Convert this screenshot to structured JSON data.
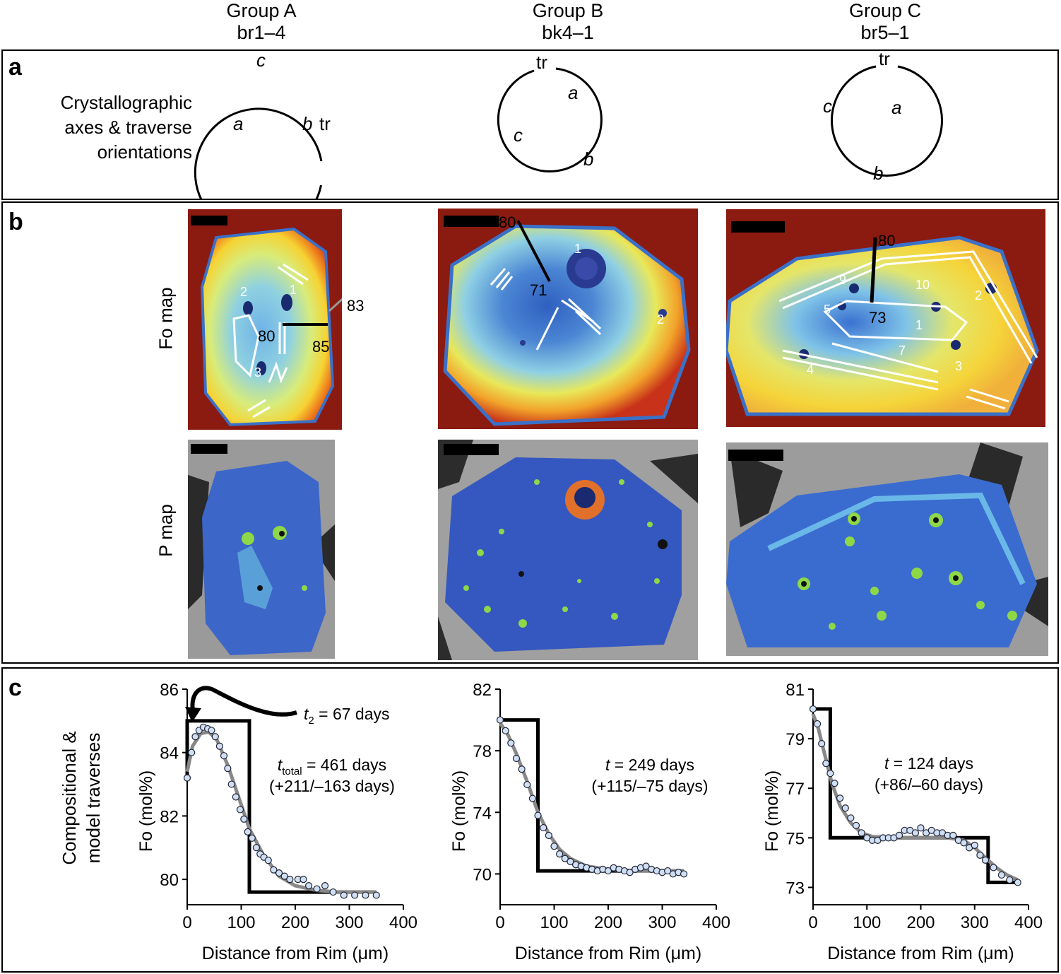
{
  "groups": [
    {
      "title": "Group A",
      "sample": "br1–4"
    },
    {
      "title": "Group B",
      "sample": "bk4–1"
    },
    {
      "title": "Group C",
      "sample": "br5–1"
    }
  ],
  "panel_a": {
    "label": "a",
    "row_label": [
      "Crystallographic",
      "axes & traverse",
      "orientations"
    ],
    "axes": [
      {
        "c": "c",
        "a": "a",
        "b": "b",
        "tr": "tr"
      },
      {
        "c": "c",
        "a": "a",
        "b": "b",
        "tr": "tr"
      },
      {
        "c": "c",
        "a": "a",
        "b": "b",
        "tr": "tr"
      }
    ]
  },
  "panel_b": {
    "label": "b",
    "fo_label": "Fo map",
    "p_label": "P map",
    "groupA": {
      "inclusions": [
        "1",
        "2",
        "3"
      ],
      "traverse": [
        "80",
        "85",
        "83"
      ]
    },
    "groupB": {
      "inclusions": [
        "1",
        "2"
      ],
      "traverse": [
        "80",
        "71"
      ]
    },
    "groupC": {
      "inclusions": [
        "1",
        "2",
        "3",
        "4",
        "5",
        "7",
        "9",
        "10"
      ],
      "traverse": [
        "80",
        "73"
      ]
    },
    "colors": {
      "rim": "#8b1a10",
      "core": "#3a6fd0",
      "matrix": "#9a9a9a",
      "white": "#ffffff"
    }
  },
  "panel_c": {
    "label": "c",
    "row_label": [
      "Compositional &",
      "model traverses"
    ]
  },
  "chart_data": [
    {
      "type": "line",
      "title": "Group A br1–4",
      "xlabel": "Distance from Rim (μm)",
      "ylabel": "Fo (mol%)",
      "xlim": [
        0,
        400
      ],
      "ylim": [
        79.2,
        86
      ],
      "xticks": [
        "0",
        "100",
        "200",
        "300",
        "400"
      ],
      "yticks": [
        "80",
        "82",
        "84",
        "86"
      ],
      "annotation_t2": {
        "t": "t",
        "sub": "2",
        "rest": " = 67 days"
      },
      "annotation_t": {
        "t": "t",
        "sub": "total",
        "rest": " = 461 days",
        "ci": "(+211/–163 days)"
      },
      "series": [
        {
          "name": "initial",
          "x": [
            0,
            0,
            115,
            115,
            350
          ],
          "y": [
            83.2,
            85,
            85,
            79.6,
            79.6
          ]
        },
        {
          "name": "model",
          "x": [
            0,
            10,
            25,
            40,
            55,
            75,
            95,
            115,
            140,
            170,
            200,
            240,
            280,
            350
          ],
          "y": [
            83.4,
            84.2,
            84.6,
            84.65,
            84.4,
            83.6,
            82.6,
            81.6,
            80.8,
            80.1,
            79.8,
            79.65,
            79.6,
            79.6
          ]
        },
        {
          "name": "data",
          "x": [
            0,
            8,
            15,
            22,
            30,
            38,
            45,
            52,
            60,
            68,
            75,
            82,
            90,
            98,
            105,
            112,
            120,
            128,
            135,
            142,
            150,
            160,
            170,
            180,
            190,
            205,
            215,
            225,
            240,
            255,
            270,
            290,
            310,
            330,
            350
          ],
          "y": [
            83.2,
            84.0,
            84.5,
            84.7,
            84.8,
            84.75,
            84.7,
            84.5,
            84.2,
            83.9,
            83.5,
            83.0,
            82.6,
            82.2,
            81.9,
            81.5,
            81.3,
            81.0,
            80.8,
            80.7,
            80.6,
            80.3,
            80.2,
            80.1,
            80.0,
            80.0,
            80.0,
            79.8,
            79.7,
            79.8,
            79.6,
            79.5,
            79.5,
            79.5,
            79.5
          ]
        }
      ]
    },
    {
      "type": "line",
      "title": "Group B bk4–1",
      "xlabel": "Distance from Rim (μm)",
      "ylabel": "Fo (mol%)",
      "xlim": [
        0,
        400
      ],
      "ylim": [
        68,
        82
      ],
      "xticks": [
        "0",
        "100",
        "200",
        "300",
        "400"
      ],
      "yticks": [
        "70",
        "74",
        "78",
        "82"
      ],
      "annotation_t": {
        "t": "t",
        "sub": "",
        "rest": " = 249 days",
        "ci": "(+115/–75 days)"
      },
      "series": [
        {
          "name": "initial",
          "x": [
            0,
            70,
            70,
            340
          ],
          "y": [
            80,
            80,
            70.2,
            70.2
          ]
        },
        {
          "name": "model",
          "x": [
            0,
            15,
            30,
            50,
            70,
            90,
            110,
            130,
            160,
            200,
            250,
            340
          ],
          "y": [
            79.8,
            79.0,
            77.8,
            76.0,
            74.0,
            72.6,
            71.6,
            71.0,
            70.5,
            70.3,
            70.2,
            70.2
          ]
        },
        {
          "name": "data",
          "x": [
            0,
            10,
            20,
            30,
            40,
            50,
            60,
            70,
            80,
            90,
            100,
            110,
            120,
            130,
            140,
            150,
            160,
            170,
            180,
            190,
            200,
            210,
            220,
            230,
            240,
            250,
            260,
            270,
            280,
            290,
            300,
            310,
            320,
            330,
            340
          ],
          "y": [
            80.0,
            79.3,
            78.5,
            77.5,
            76.8,
            75.8,
            74.9,
            73.8,
            73.0,
            72.5,
            71.8,
            71.3,
            71.0,
            70.8,
            70.6,
            70.5,
            70.4,
            70.3,
            70.2,
            70.3,
            70.2,
            70.4,
            70.3,
            70.2,
            70.1,
            70.3,
            70.4,
            70.5,
            70.3,
            70.2,
            70.1,
            70.2,
            70.0,
            70.1,
            70.0
          ]
        }
      ]
    },
    {
      "type": "line",
      "title": "Group C br5–1",
      "xlabel": "Distance from Rim (μm)",
      "ylabel": "Fo (mol%)",
      "xlim": [
        0,
        400
      ],
      "ylim": [
        72.3,
        81
      ],
      "xticks": [
        "0",
        "100",
        "200",
        "300",
        "400"
      ],
      "yticks": [
        "73",
        "75",
        "77",
        "79",
        "81"
      ],
      "annotation_t": {
        "t": "t",
        "sub": "",
        "rest": " = 124 days",
        "ci": "(+86/–60 days)"
      },
      "series": [
        {
          "name": "initial",
          "x": [
            0,
            32,
            32,
            325,
            325,
            380
          ],
          "y": [
            80.2,
            80.2,
            75,
            75,
            73.2,
            73.2
          ]
        },
        {
          "name": "model",
          "x": [
            0,
            10,
            20,
            35,
            50,
            70,
            90,
            110,
            150,
            200,
            250,
            280,
            300,
            320,
            340,
            360,
            380
          ],
          "y": [
            80.0,
            79.4,
            78.5,
            77.2,
            76.3,
            75.6,
            75.2,
            75.05,
            75.0,
            75.0,
            75.0,
            74.9,
            74.6,
            74.2,
            73.8,
            73.5,
            73.3
          ]
        },
        {
          "name": "data",
          "x": [
            0,
            8,
            16,
            24,
            32,
            40,
            50,
            60,
            70,
            80,
            90,
            100,
            110,
            120,
            130,
            140,
            150,
            160,
            170,
            180,
            190,
            200,
            210,
            220,
            230,
            240,
            250,
            260,
            270,
            280,
            290,
            300,
            310,
            320,
            335,
            350,
            365,
            380
          ],
          "y": [
            80.2,
            79.6,
            78.8,
            78.0,
            77.6,
            77.2,
            76.6,
            76.2,
            75.8,
            75.5,
            75.2,
            75.0,
            74.9,
            74.9,
            75.0,
            75.0,
            75.0,
            75.1,
            75.3,
            75.3,
            75.2,
            75.4,
            75.2,
            75.3,
            75.2,
            75.2,
            75.1,
            75.1,
            74.9,
            74.8,
            74.6,
            74.7,
            74.3,
            74.1,
            73.8,
            73.5,
            73.3,
            73.2
          ]
        }
      ]
    }
  ]
}
